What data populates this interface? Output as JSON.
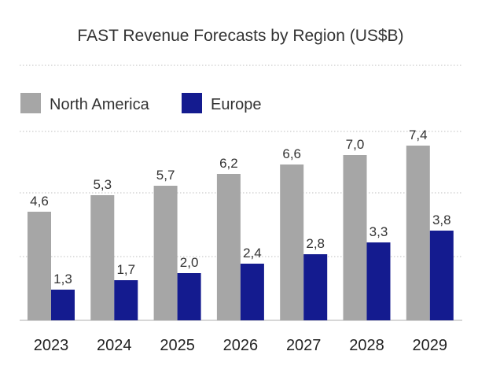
{
  "chart_data": {
    "type": "bar",
    "title": "FAST Revenue Forecasts by Region (US$B)",
    "xlabel": "",
    "ylabel": "",
    "categories": [
      "2023",
      "2024",
      "2025",
      "2026",
      "2027",
      "2028",
      "2029"
    ],
    "series": [
      {
        "name": "North America",
        "color": "#a6a6a6",
        "values": [
          4.6,
          5.3,
          5.7,
          6.2,
          6.6,
          7.0,
          7.4
        ],
        "labels": [
          "4,6",
          "5,3",
          "5,7",
          "6,2",
          "6,6",
          "7,0",
          "7,4"
        ]
      },
      {
        "name": "Europe",
        "color": "#141b8f",
        "values": [
          1.3,
          1.7,
          2.0,
          2.4,
          2.8,
          3.3,
          3.8
        ],
        "labels": [
          "1,3",
          "1,7",
          "2,0",
          "2,4",
          "2,8",
          "3,3",
          "3,8"
        ]
      }
    ],
    "ylim": [
      0,
      8
    ],
    "grid": true,
    "legend_position": "top-left",
    "gridline_color": "#bfbfbf"
  }
}
